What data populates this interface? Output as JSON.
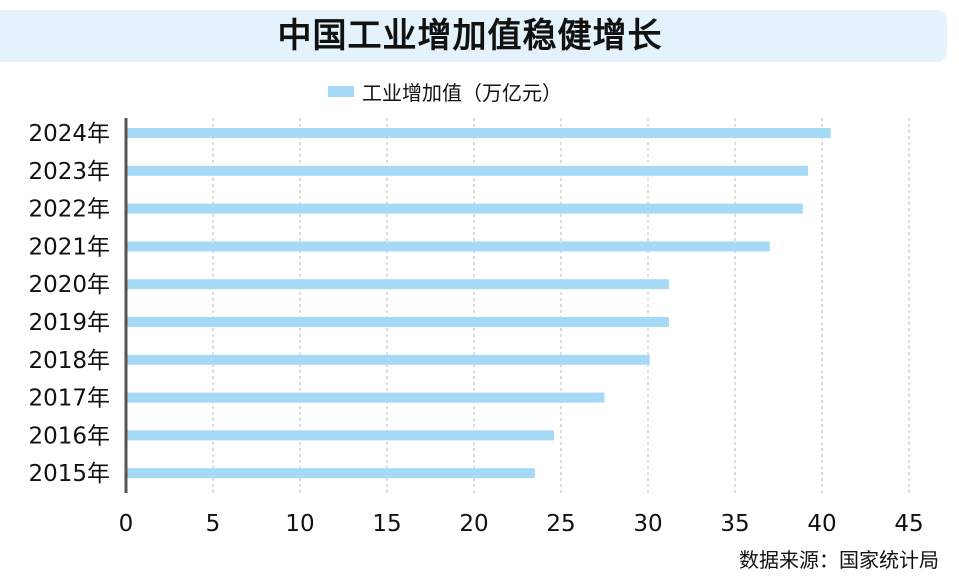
{
  "title": "中国工业增加值稳健增长",
  "source": "数据来源：国家统计局",
  "colors": {
    "bar": "#a6d9f5",
    "axis": "#555555",
    "grid": "#bbbbbb",
    "title_bg": "#e3f2fb"
  },
  "chart_data": {
    "type": "bar",
    "orientation": "horizontal",
    "categories": [
      "2024年",
      "2023年",
      "2022年",
      "2021年",
      "2020年",
      "2019年",
      "2018年",
      "2017年",
      "2016年",
      "2015年"
    ],
    "series": [
      {
        "name": "工业增加值（万亿元）",
        "values": [
          40.5,
          39.2,
          38.9,
          37.0,
          31.2,
          31.2,
          30.1,
          27.5,
          24.6,
          23.5
        ]
      }
    ],
    "xticks": [
      "0",
      "5",
      "10",
      "15",
      "20",
      "25",
      "30",
      "35",
      "40",
      "45"
    ],
    "xlim": [
      0,
      45
    ],
    "grid": true,
    "legend": "top-center"
  }
}
